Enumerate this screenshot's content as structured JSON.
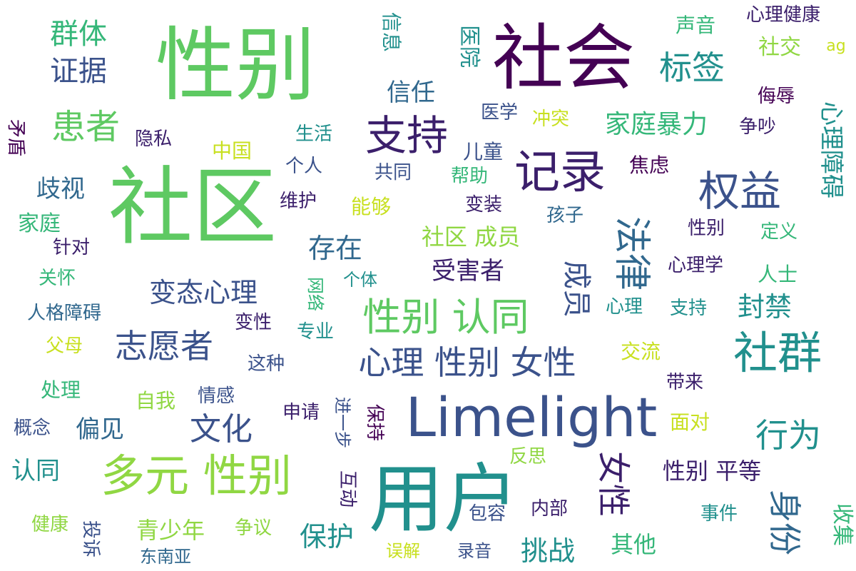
{
  "palette": {
    "dark_purple": "#440154",
    "deep_indigo": "#3b1f6b",
    "slate_blue": "#3b528b",
    "steel_blue": "#31688e",
    "teal": "#21908d",
    "sea_green": "#35b779",
    "green": "#5ec962",
    "lime": "#90d743",
    "yellow": "#c8e020",
    "bright_yellow": "#fde725"
  },
  "words": [
    {
      "text": "性别"
    },
    {
      "text": "社区"
    },
    {
      "text": "社会"
    },
    {
      "text": "用户"
    },
    {
      "text": "Limelight"
    },
    {
      "text": "记录"
    },
    {
      "text": "支持"
    },
    {
      "text": "多元 性别"
    },
    {
      "text": "社群"
    },
    {
      "text": "权益"
    },
    {
      "text": "性别 认同"
    },
    {
      "text": "法律"
    },
    {
      "text": "心理 性别 女性"
    },
    {
      "text": "志愿者"
    },
    {
      "text": "患者"
    },
    {
      "text": "文化"
    },
    {
      "text": "行为"
    },
    {
      "text": "女性"
    },
    {
      "text": "身份"
    },
    {
      "text": "标签"
    },
    {
      "text": "群体"
    },
    {
      "text": "证据"
    },
    {
      "text": "心理障碍"
    },
    {
      "text": "成员"
    },
    {
      "text": "家庭暴力"
    },
    {
      "text": "变态心理"
    },
    {
      "text": "存在"
    },
    {
      "text": "信任"
    },
    {
      "text": "保护"
    },
    {
      "text": "挑战"
    },
    {
      "text": "社区 成员"
    },
    {
      "text": "受害者"
    },
    {
      "text": "封禁"
    },
    {
      "text": "歧视"
    },
    {
      "text": "偏见"
    },
    {
      "text": "认同"
    },
    {
      "text": "性别 平等"
    },
    {
      "text": "青少年"
    },
    {
      "text": "其他"
    },
    {
      "text": "收集"
    },
    {
      "text": "社交"
    },
    {
      "text": "心理健康"
    },
    {
      "text": "声音"
    },
    {
      "text": "医院"
    },
    {
      "text": "信息"
    },
    {
      "text": "家庭"
    },
    {
      "text": "医学"
    },
    {
      "text": "冲突"
    },
    {
      "text": "争吵"
    },
    {
      "text": "生活"
    },
    {
      "text": "个人"
    },
    {
      "text": "中国"
    },
    {
      "text": "儿童"
    },
    {
      "text": "共同"
    },
    {
      "text": "帮助"
    },
    {
      "text": "焦虑"
    },
    {
      "text": "侮辱"
    },
    {
      "text": "矛盾"
    },
    {
      "text": "隐私"
    },
    {
      "text": "维护"
    },
    {
      "text": "能够"
    },
    {
      "text": "变装"
    },
    {
      "text": "孩子"
    },
    {
      "text": "性别"
    },
    {
      "text": "定义"
    },
    {
      "text": "针对"
    },
    {
      "text": "关怀"
    },
    {
      "text": "心理学"
    },
    {
      "text": "人士"
    },
    {
      "text": "网络"
    },
    {
      "text": "个体"
    },
    {
      "text": "人格障碍"
    },
    {
      "text": "变性"
    },
    {
      "text": "心理"
    },
    {
      "text": "支持"
    },
    {
      "text": "父母"
    },
    {
      "text": "专业"
    },
    {
      "text": "这种"
    },
    {
      "text": "交流"
    },
    {
      "text": "带来"
    },
    {
      "text": "处理"
    },
    {
      "text": "自我"
    },
    {
      "text": "情感"
    },
    {
      "text": "概念"
    },
    {
      "text": "申请"
    },
    {
      "text": "进一步"
    },
    {
      "text": "保持"
    },
    {
      "text": "面对"
    },
    {
      "text": "反思"
    },
    {
      "text": "互动"
    },
    {
      "text": "包容"
    },
    {
      "text": "内部"
    },
    {
      "text": "事件"
    },
    {
      "text": "健康"
    },
    {
      "text": "投诉"
    },
    {
      "text": "争议"
    },
    {
      "text": "误解"
    },
    {
      "text": "录音"
    },
    {
      "text": "东南亚"
    },
    {
      "text": "ag"
    }
  ]
}
